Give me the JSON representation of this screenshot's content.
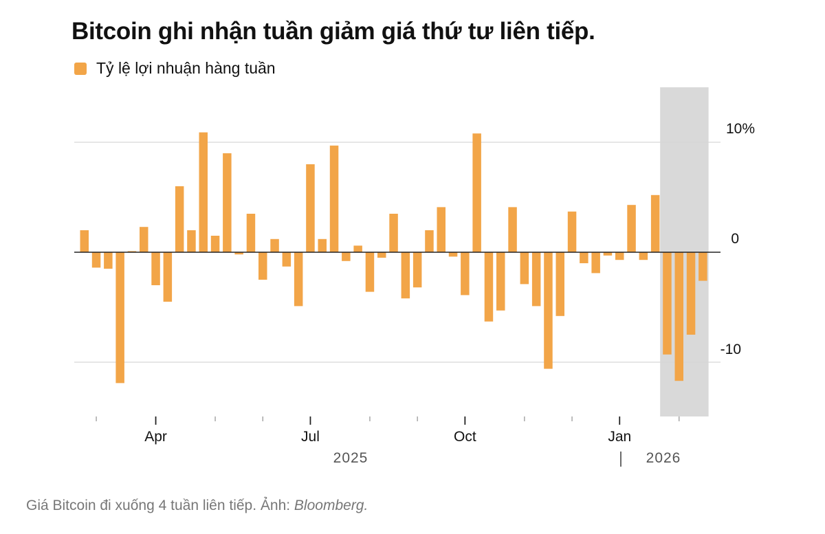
{
  "title": "Bitcoin ghi nhận tuần giảm giá thứ tư liên tiếp.",
  "legend_label": "Tỷ lệ lợi nhuận hàng tuần",
  "caption": {
    "text": "Giá Bitcoin đi xuống 4 tuần liên tiếp. Ảnh: ",
    "source": "Bloomberg."
  },
  "colors": {
    "bar": "#f2a548",
    "highlight_band": "#d9d9d9",
    "zero_line": "#222222",
    "grid": "#d6d6d6"
  },
  "chart_data": {
    "type": "bar",
    "y_unit": "%",
    "ylim": [
      -15,
      14.9
    ],
    "y_ticks": [
      {
        "value": 10,
        "label": "10%"
      },
      {
        "value": 0,
        "label": "0"
      },
      {
        "value": -10,
        "label": "-10"
      }
    ],
    "grid": true,
    "x_tick_labels": [
      "Apr",
      "Jul",
      "Oct",
      "Jan"
    ],
    "year_labels": [
      "2025",
      "2026"
    ],
    "highlight": {
      "from_week": 49,
      "to_week": 52
    },
    "values": [
      2.0,
      -1.4,
      -1.5,
      -11.9,
      0.1,
      2.3,
      -3.0,
      -4.5,
      6.0,
      2.0,
      10.9,
      1.5,
      9.0,
      -0.2,
      3.5,
      -2.5,
      1.2,
      -1.3,
      -4.9,
      8.0,
      1.2,
      9.7,
      -0.8,
      0.6,
      -3.6,
      -0.5,
      3.5,
      -4.2,
      -3.2,
      2.0,
      4.1,
      -0.4,
      -3.9,
      10.8,
      -6.3,
      -5.3,
      4.1,
      -2.9,
      -4.9,
      -10.6,
      -5.8,
      3.7,
      -1.0,
      -1.9,
      -0.3,
      -0.7,
      4.3,
      -0.7,
      5.2,
      -9.3,
      -11.7,
      -7.5,
      -2.6
    ]
  }
}
